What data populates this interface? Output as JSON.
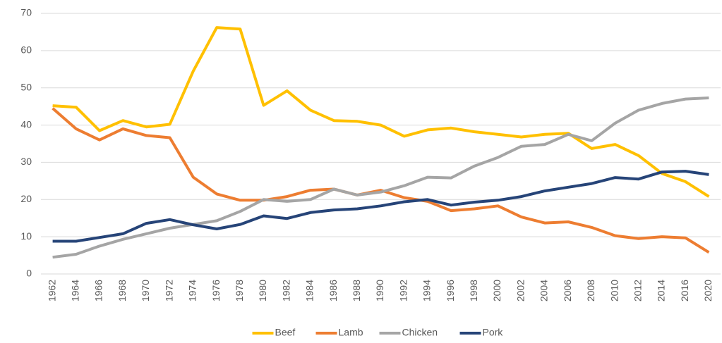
{
  "chart_data": {
    "type": "line",
    "categories": [
      "1962",
      "1964",
      "1966",
      "1968",
      "1970",
      "1972",
      "1974",
      "1976",
      "1978",
      "1980",
      "1982",
      "1984",
      "1986",
      "1988",
      "1990",
      "1992",
      "1994",
      "1996",
      "1998",
      "2000",
      "2002",
      "2004",
      "2006",
      "2008",
      "2010",
      "2012",
      "2014",
      "2016",
      "2020"
    ],
    "series": [
      {
        "name": "Beef",
        "color": "#ffc000",
        "values": [
          45.2,
          44.8,
          38.5,
          41.2,
          39.5,
          40.2,
          54.5,
          66.2,
          65.8,
          45.3,
          49.2,
          44,
          41.2,
          41,
          40,
          37,
          38.7,
          39.2,
          38.2,
          37.5,
          36.8,
          37.5,
          37.8,
          33.7,
          34.8,
          31.8,
          27,
          24.8,
          20.8
        ]
      },
      {
        "name": "Lamb",
        "color": "#ed7d31",
        "values": [
          44.5,
          39,
          36,
          39,
          37.2,
          36.6,
          26,
          21.5,
          19.8,
          19.8,
          20.8,
          22.5,
          22.8,
          21.2,
          22.5,
          20.5,
          19.5,
          17,
          17.5,
          18.3,
          15.3,
          13.7,
          14,
          12.5,
          10.3,
          9.5,
          10,
          9.7,
          5.8
        ]
      },
      {
        "name": "Chicken",
        "color": "#a5a5a5",
        "values": [
          4.5,
          5.3,
          7.5,
          9.3,
          10.8,
          12.3,
          13.3,
          14.3,
          16.8,
          20,
          19.5,
          20,
          22.8,
          21.2,
          22,
          23.7,
          26,
          25.8,
          29,
          31.3,
          34.3,
          34.8,
          37.5,
          35.8,
          40.5,
          44,
          45.8,
          47,
          47.3
        ]
      },
      {
        "name": "Pork",
        "color": "#264478",
        "values": [
          8.8,
          8.8,
          9.8,
          10.8,
          13.6,
          14.6,
          13.2,
          12.1,
          13.3,
          15.6,
          14.9,
          16.5,
          17.2,
          17.5,
          18.3,
          19.4,
          20,
          18.5,
          19.3,
          19.8,
          20.8,
          22.3,
          23.3,
          24.3,
          25.9,
          25.5,
          27.4,
          27.6,
          26.7
        ]
      }
    ],
    "ylim": [
      0,
      70
    ],
    "yticks": [
      0,
      10,
      20,
      30,
      40,
      50,
      60,
      70
    ],
    "grid": true,
    "legend": "bottom"
  }
}
